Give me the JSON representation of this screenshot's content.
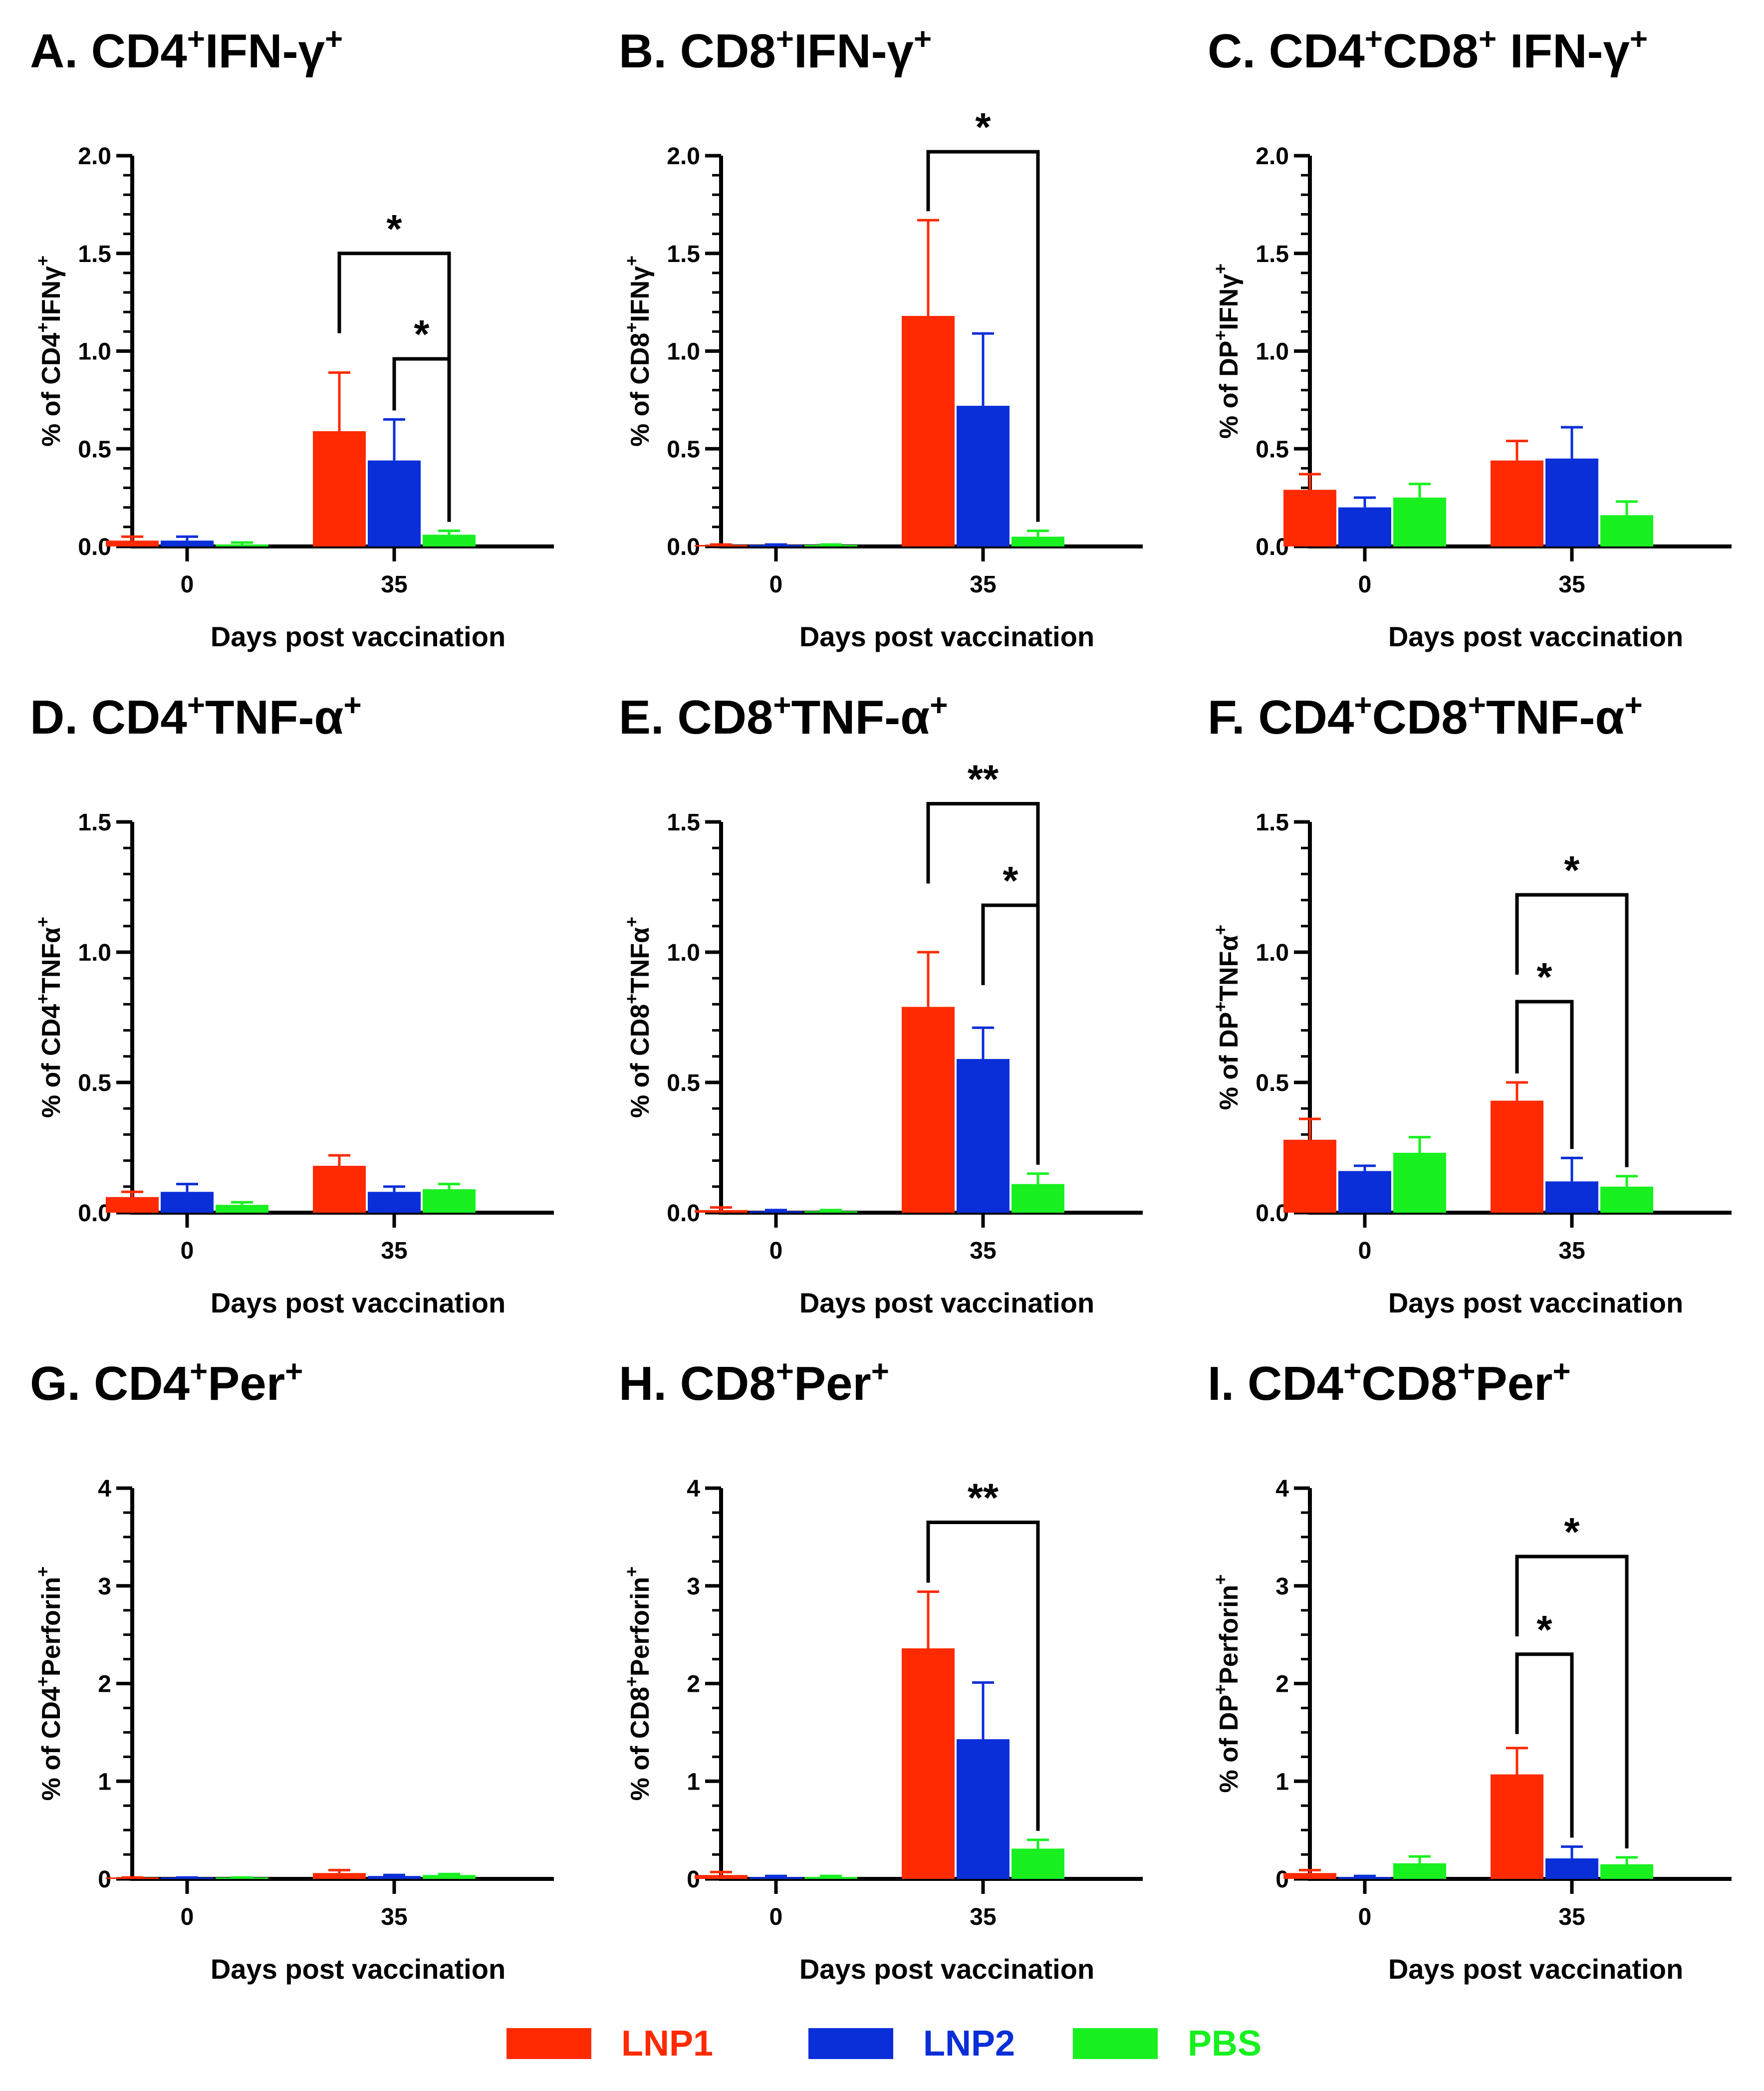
{
  "chart_data": [
    {
      "panel": "A",
      "title_parts": [
        "A. CD4",
        "+",
        "IFN-γ",
        "+"
      ],
      "ylabel_parts": [
        "% of CD4",
        "+",
        "IFNγ",
        "+"
      ],
      "xlabel": "Days post vaccination",
      "type": "bar",
      "categories": [
        "0",
        "35"
      ],
      "ylim": [
        0,
        2.0
      ],
      "yticks": [
        0,
        0.5,
        1.0,
        1.5,
        2.0
      ],
      "ytick_labels": [
        "0.0",
        "0.5",
        "1.0",
        "1.5",
        "2.0"
      ],
      "minor_per_major": 5,
      "series": [
        {
          "name": "LNP1",
          "values": [
            0.03,
            0.59
          ],
          "errors": [
            0.02,
            0.3
          ]
        },
        {
          "name": "LNP2",
          "values": [
            0.03,
            0.44
          ],
          "errors": [
            0.02,
            0.21
          ]
        },
        {
          "name": "PBS",
          "values": [
            0.01,
            0.06
          ],
          "errors": [
            0.01,
            0.02
          ]
        }
      ],
      "significance": [
        {
          "from": "LNP1",
          "to": "PBS",
          "label": "*",
          "y": 1.5
        },
        {
          "from": "LNP2",
          "to": "PBS",
          "label": "*",
          "y": 0.96
        }
      ]
    },
    {
      "panel": "B",
      "title_parts": [
        "B. CD8",
        "+",
        "IFN-γ",
        "+"
      ],
      "ylabel_parts": [
        "% of CD8",
        "+",
        "IFNγ",
        "+"
      ],
      "xlabel": "Days post vaccination",
      "type": "bar",
      "categories": [
        "0",
        "35"
      ],
      "ylim": [
        0,
        2.0
      ],
      "yticks": [
        0,
        0.5,
        1.0,
        1.5,
        2.0
      ],
      "ytick_labels": [
        "0.0",
        "0.5",
        "1.0",
        "1.5",
        "2.0"
      ],
      "minor_per_major": 5,
      "series": [
        {
          "name": "LNP1",
          "values": [
            0.005,
            1.18
          ],
          "errors": [
            0.005,
            0.49
          ]
        },
        {
          "name": "LNP2",
          "values": [
            0.005,
            0.72
          ],
          "errors": [
            0.005,
            0.37
          ]
        },
        {
          "name": "PBS",
          "values": [
            0.005,
            0.05
          ],
          "errors": [
            0.005,
            0.03
          ]
        }
      ],
      "significance": [
        {
          "from": "LNP1",
          "to": "PBS",
          "label": "*",
          "y": 2.02
        }
      ]
    },
    {
      "panel": "C",
      "title_parts": [
        "C. CD4",
        "+",
        "CD8",
        "+",
        " IFN-γ",
        "+"
      ],
      "ylabel_parts": [
        "% of DP",
        "+",
        "IFNγ",
        "+"
      ],
      "xlabel": "Days post vaccination",
      "type": "bar",
      "categories": [
        "0",
        "35"
      ],
      "ylim": [
        0,
        2.0
      ],
      "yticks": [
        0,
        0.5,
        1.0,
        1.5,
        2.0
      ],
      "ytick_labels": [
        "0.0",
        "0.5",
        "1.0",
        "1.5",
        "2.0"
      ],
      "minor_per_major": 5,
      "series": [
        {
          "name": "LNP1",
          "values": [
            0.29,
            0.44
          ],
          "errors": [
            0.08,
            0.1
          ]
        },
        {
          "name": "LNP2",
          "values": [
            0.2,
            0.45
          ],
          "errors": [
            0.05,
            0.16
          ]
        },
        {
          "name": "PBS",
          "values": [
            0.25,
            0.16
          ],
          "errors": [
            0.07,
            0.07
          ]
        }
      ],
      "significance": []
    },
    {
      "panel": "D",
      "title_parts": [
        "D. CD4",
        "+",
        "TNF-α",
        "+"
      ],
      "ylabel_parts": [
        "% of CD4",
        "+",
        "TNFα",
        "+"
      ],
      "xlabel": "Days post vaccination",
      "type": "bar",
      "categories": [
        "0",
        "35"
      ],
      "ylim": [
        0,
        1.5
      ],
      "yticks": [
        0,
        0.5,
        1.0,
        1.5
      ],
      "ytick_labels": [
        "0.0",
        "0.5",
        "1.0",
        "1.5"
      ],
      "minor_per_major": 5,
      "series": [
        {
          "name": "LNP1",
          "values": [
            0.06,
            0.18
          ],
          "errors": [
            0.02,
            0.04
          ]
        },
        {
          "name": "LNP2",
          "values": [
            0.08,
            0.08
          ],
          "errors": [
            0.03,
            0.02
          ]
        },
        {
          "name": "PBS",
          "values": [
            0.03,
            0.09
          ],
          "errors": [
            0.01,
            0.02
          ]
        }
      ],
      "significance": []
    },
    {
      "panel": "E",
      "title_parts": [
        "E. CD8",
        "+",
        "TNF-α",
        "+"
      ],
      "ylabel_parts": [
        "% of CD8",
        "+",
        "TNFα",
        "+"
      ],
      "xlabel": "Days post vaccination",
      "type": "bar",
      "categories": [
        "0",
        "35"
      ],
      "ylim": [
        0,
        1.5
      ],
      "yticks": [
        0,
        0.5,
        1.0,
        1.5
      ],
      "ytick_labels": [
        "0.0",
        "0.5",
        "1.0",
        "1.5"
      ],
      "minor_per_major": 5,
      "series": [
        {
          "name": "LNP1",
          "values": [
            0.01,
            0.79
          ],
          "errors": [
            0.01,
            0.21
          ]
        },
        {
          "name": "LNP2",
          "values": [
            0.005,
            0.59
          ],
          "errors": [
            0.005,
            0.12
          ]
        },
        {
          "name": "PBS",
          "values": [
            0.005,
            0.11
          ],
          "errors": [
            0.005,
            0.04
          ]
        }
      ],
      "significance": [
        {
          "from": "LNP1",
          "to": "PBS",
          "label": "**",
          "y": 1.57
        },
        {
          "from": "LNP2",
          "to": "PBS",
          "label": "*",
          "y": 1.18
        }
      ]
    },
    {
      "panel": "F",
      "title_parts": [
        "F. CD4",
        "+",
        "CD8",
        "+",
        "TNF-α",
        "+"
      ],
      "ylabel_parts": [
        "% of DP",
        "+",
        "TNFα",
        "+"
      ],
      "xlabel": "Days post vaccination",
      "type": "bar",
      "categories": [
        "0",
        "35"
      ],
      "ylim": [
        0,
        1.5
      ],
      "yticks": [
        0,
        0.5,
        1.0,
        1.5
      ],
      "ytick_labels": [
        "0.0",
        "0.5",
        "1.0",
        "1.5"
      ],
      "minor_per_major": 5,
      "series": [
        {
          "name": "LNP1",
          "values": [
            0.28,
            0.43
          ],
          "errors": [
            0.08,
            0.07
          ]
        },
        {
          "name": "LNP2",
          "values": [
            0.16,
            0.12
          ],
          "errors": [
            0.02,
            0.09
          ]
        },
        {
          "name": "PBS",
          "values": [
            0.23,
            0.1
          ],
          "errors": [
            0.06,
            0.04
          ]
        }
      ],
      "significance": [
        {
          "from": "LNP1",
          "to": "PBS",
          "label": "*",
          "y": 1.22
        },
        {
          "from": "LNP1",
          "to": "LNP2",
          "label": "*",
          "y": 0.81
        }
      ]
    },
    {
      "panel": "G",
      "title_parts": [
        "G. CD4",
        "+",
        "Per",
        "+"
      ],
      "ylabel_parts": [
        "% of CD4",
        "+",
        "Perforin",
        "+"
      ],
      "xlabel": "Days post vaccination",
      "type": "bar",
      "categories": [
        "0",
        "35"
      ],
      "ylim": [
        0,
        4
      ],
      "yticks": [
        0,
        1,
        2,
        3,
        4
      ],
      "ytick_labels": [
        "0",
        "1",
        "2",
        "3",
        "4"
      ],
      "minor_per_major": 4,
      "series": [
        {
          "name": "LNP1",
          "values": [
            0.01,
            0.06
          ],
          "errors": [
            0.005,
            0.03
          ]
        },
        {
          "name": "LNP2",
          "values": [
            0.01,
            0.03
          ],
          "errors": [
            0.005,
            0.01
          ]
        },
        {
          "name": "PBS",
          "values": [
            0.01,
            0.04
          ],
          "errors": [
            0.005,
            0.01
          ]
        }
      ],
      "significance": []
    },
    {
      "panel": "H",
      "title_parts": [
        "H. CD8",
        "+",
        "Per",
        "+"
      ],
      "ylabel_parts": [
        "% of CD8",
        "+",
        "Perforin",
        "+"
      ],
      "xlabel": "Days post vaccination",
      "type": "bar",
      "categories": [
        "0",
        "35"
      ],
      "ylim": [
        0,
        4
      ],
      "yticks": [
        0,
        1,
        2,
        3,
        4
      ],
      "ytick_labels": [
        "0",
        "1",
        "2",
        "3",
        "4"
      ],
      "minor_per_major": 4,
      "series": [
        {
          "name": "LNP1",
          "values": [
            0.04,
            2.36
          ],
          "errors": [
            0.03,
            0.58
          ]
        },
        {
          "name": "LNP2",
          "values": [
            0.02,
            1.43
          ],
          "errors": [
            0.01,
            0.58
          ]
        },
        {
          "name": "PBS",
          "values": [
            0.02,
            0.31
          ],
          "errors": [
            0.01,
            0.09
          ]
        }
      ],
      "significance": [
        {
          "from": "LNP1",
          "to": "PBS",
          "label": "**",
          "y": 3.65
        }
      ]
    },
    {
      "panel": "I",
      "title_parts": [
        "I. CD4",
        "+",
        "CD8",
        "+",
        "Per",
        "+"
      ],
      "ylabel_parts": [
        "% of DP",
        "+",
        "Perforin",
        "+"
      ],
      "xlabel": "Days post vaccination",
      "type": "bar",
      "categories": [
        "0",
        "35"
      ],
      "ylim": [
        0,
        4
      ],
      "yticks": [
        0,
        1,
        2,
        3,
        4
      ],
      "ytick_labels": [
        "0",
        "1",
        "2",
        "3",
        "4"
      ],
      "minor_per_major": 4,
      "series": [
        {
          "name": "LNP1",
          "values": [
            0.06,
            1.07
          ],
          "errors": [
            0.03,
            0.27
          ]
        },
        {
          "name": "LNP2",
          "values": [
            0.02,
            0.21
          ],
          "errors": [
            0.01,
            0.12
          ]
        },
        {
          "name": "PBS",
          "values": [
            0.16,
            0.15
          ],
          "errors": [
            0.07,
            0.07
          ]
        }
      ],
      "significance": [
        {
          "from": "LNP1",
          "to": "PBS",
          "label": "*",
          "y": 3.3
        },
        {
          "from": "LNP1",
          "to": "LNP2",
          "label": "*",
          "y": 2.3
        }
      ]
    }
  ],
  "legend": [
    {
      "name": "LNP1",
      "color": "#ff2a00"
    },
    {
      "name": "LNP2",
      "color": "#0a2fd8"
    },
    {
      "name": "PBS",
      "color": "#18f020"
    }
  ]
}
